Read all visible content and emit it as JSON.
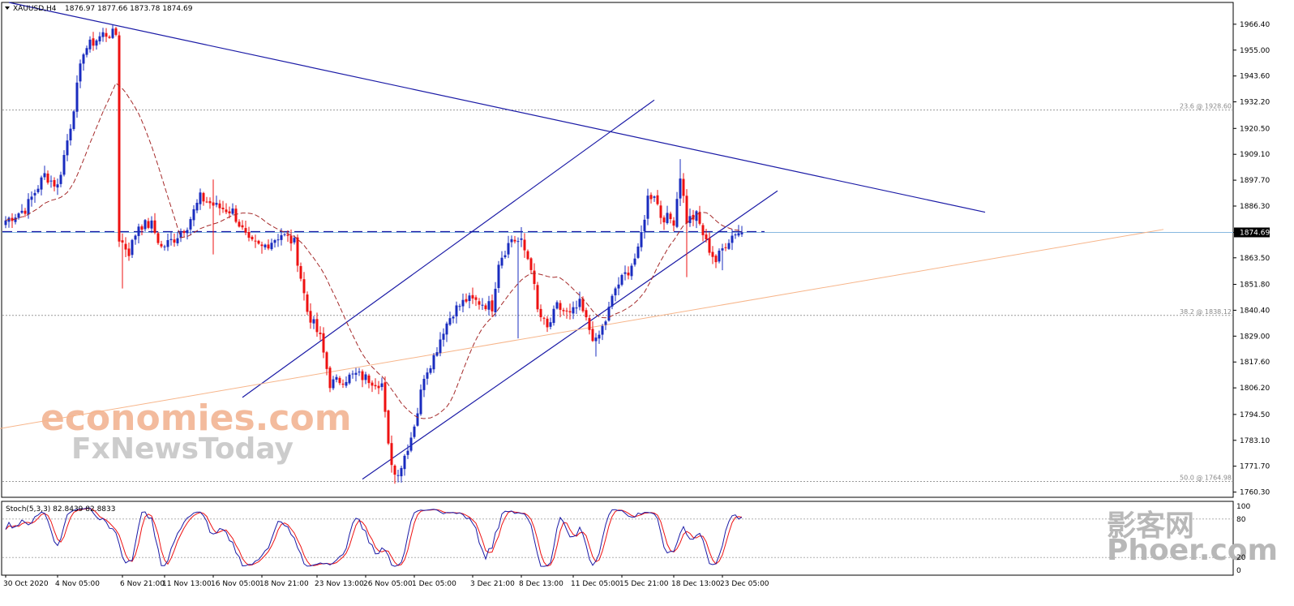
{
  "header": {
    "symbol": "XAUUSD,H4",
    "ohlc": "1876.97 1877.66 1873.78 1874.69"
  },
  "indicator": {
    "label": "Stoch(5,3,3) 82.8439 82.8833"
  },
  "watermarks": {
    "brand1": "economies.com",
    "brand2": "FxNewsToday",
    "brand3_cn": "影客网",
    "brand3_en": "Phoer.com"
  },
  "colors": {
    "bull": "#1a2cbf",
    "bear": "#ee1111",
    "ma": "#a52a2a",
    "trend": "#1a1aa6",
    "stoch_main": "#1a1aa6",
    "stoch_signal": "#ee1111",
    "fib": "#999999",
    "orange_trend": "#f7b58a",
    "price_line": "#87b8e0",
    "current_bg": "#000000"
  },
  "chart_data": {
    "type": "candlestick",
    "title": "XAUUSD,H4",
    "ylim": [
      1758,
      1976
    ],
    "y_ticks": [
      "1966.40",
      "1955.00",
      "1943.60",
      "1932.20",
      "1920.50",
      "1909.10",
      "1897.70",
      "1886.30",
      "1874.69",
      "1863.50",
      "1851.80",
      "1840.40",
      "1829.00",
      "1817.60",
      "1806.20",
      "1794.50",
      "1783.10",
      "1771.70",
      "1760.30"
    ],
    "y_tick_values": [
      1966.4,
      1955.0,
      1943.6,
      1932.2,
      1920.5,
      1909.1,
      1897.7,
      1886.3,
      1874.69,
      1863.5,
      1851.8,
      1840.4,
      1829.0,
      1817.6,
      1806.2,
      1794.5,
      1783.1,
      1771.7,
      1760.3
    ],
    "x_labels": [
      "30 Oct 2020",
      "4 Nov 05:00",
      "6 Nov 21:00",
      "11 Nov 13:00",
      "16 Nov 05:00",
      "18 Nov 21:00",
      "23 Nov 13:00",
      "26 Nov 05:00",
      "1 Dec 05:00",
      "3 Dec 21:00",
      "8 Dec 13:00",
      "11 Dec 05:00",
      "15 Dec 21:00",
      "18 Dec 13:00",
      "23 Dec 05:00"
    ],
    "x_label_bars": [
      0,
      16,
      36,
      49,
      64,
      79,
      96,
      111,
      126,
      144,
      159,
      175,
      190,
      206,
      221
    ],
    "current_price": 1874.69,
    "key_level": 1874.69,
    "fib_levels": [
      {
        "label": "23.6 @ 1928.60",
        "value": 1928.6
      },
      {
        "label": "38.2 @ 1838.12",
        "value": 1838.12
      },
      {
        "label": "50.0 @ 1764.98",
        "value": 1764.98
      }
    ],
    "close_anchors": [
      [
        0,
        1880
      ],
      [
        6,
        1885
      ],
      [
        12,
        1900
      ],
      [
        16,
        1895
      ],
      [
        20,
        1922
      ],
      [
        24,
        1955
      ],
      [
        30,
        1962
      ],
      [
        34,
        1962
      ],
      [
        35,
        1872
      ],
      [
        38,
        1866
      ],
      [
        41,
        1878
      ],
      [
        45,
        1878
      ],
      [
        48,
        1868
      ],
      [
        52,
        1872
      ],
      [
        56,
        1878
      ],
      [
        60,
        1890
      ],
      [
        65,
        1886
      ],
      [
        70,
        1884
      ],
      [
        75,
        1870
      ],
      [
        79,
        1868
      ],
      [
        85,
        1874
      ],
      [
        89,
        1870
      ],
      [
        93,
        1840
      ],
      [
        97,
        1828
      ],
      [
        100,
        1808
      ],
      [
        104,
        1810
      ],
      [
        108,
        1812
      ],
      [
        112,
        1810
      ],
      [
        116,
        1808
      ],
      [
        118,
        1780
      ],
      [
        120,
        1768
      ],
      [
        122,
        1772
      ],
      [
        125,
        1785
      ],
      [
        127,
        1796
      ],
      [
        129,
        1812
      ],
      [
        132,
        1820
      ],
      [
        135,
        1832
      ],
      [
        138,
        1840
      ],
      [
        142,
        1845
      ],
      [
        146,
        1844
      ],
      [
        150,
        1842
      ],
      [
        152,
        1862
      ],
      [
        156,
        1872
      ],
      [
        159,
        1870
      ],
      [
        162,
        1860
      ],
      [
        164,
        1840
      ],
      [
        167,
        1832
      ],
      [
        170,
        1842
      ],
      [
        174,
        1838
      ],
      [
        177,
        1843
      ],
      [
        180,
        1832
      ],
      [
        182,
        1826
      ],
      [
        185,
        1836
      ],
      [
        188,
        1850
      ],
      [
        192,
        1858
      ],
      [
        195,
        1866
      ],
      [
        198,
        1890
      ],
      [
        200,
        1892
      ],
      [
        202,
        1882
      ],
      [
        206,
        1880
      ],
      [
        208,
        1900
      ],
      [
        210,
        1880
      ],
      [
        213,
        1882
      ],
      [
        216,
        1870
      ],
      [
        219,
        1862
      ],
      [
        222,
        1870
      ],
      [
        225,
        1875
      ],
      [
        227,
        1874.69
      ]
    ],
    "lower_wicks": [
      [
        36,
        1850
      ],
      [
        64,
        1865
      ],
      [
        120,
        1764
      ],
      [
        158,
        1828
      ],
      [
        182,
        1820
      ],
      [
        210,
        1855
      ],
      [
        221,
        1858
      ]
    ],
    "upper_wicks": [
      [
        33,
        1966
      ],
      [
        64,
        1898
      ],
      [
        159,
        1877
      ],
      [
        208,
        1907
      ],
      [
        226,
        1878
      ]
    ],
    "stochastic": {
      "name": "Stoch(5,3,3)",
      "main_value": 82.8439,
      "signal_value": 82.8833,
      "levels": [
        20,
        80
      ],
      "scale_ticks": [
        "100",
        "80",
        "20",
        "0"
      ],
      "scale_values": [
        100,
        80,
        20,
        0
      ]
    },
    "trendlines": [
      {
        "name": "descending-resistance",
        "points": [
          [
            1,
            1976
          ],
          [
            302,
            1883.6
          ]
        ]
      },
      {
        "name": "channel-upper",
        "points": [
          [
            73,
            1802
          ],
          [
            200,
            1933
          ]
        ]
      },
      {
        "name": "channel-lower",
        "points": [
          [
            110,
            1766
          ],
          [
            238,
            1893
          ]
        ]
      },
      {
        "name": "ascending-support",
        "points": [
          [
            -3,
            1788
          ],
          [
            357,
            1876
          ]
        ]
      }
    ]
  }
}
